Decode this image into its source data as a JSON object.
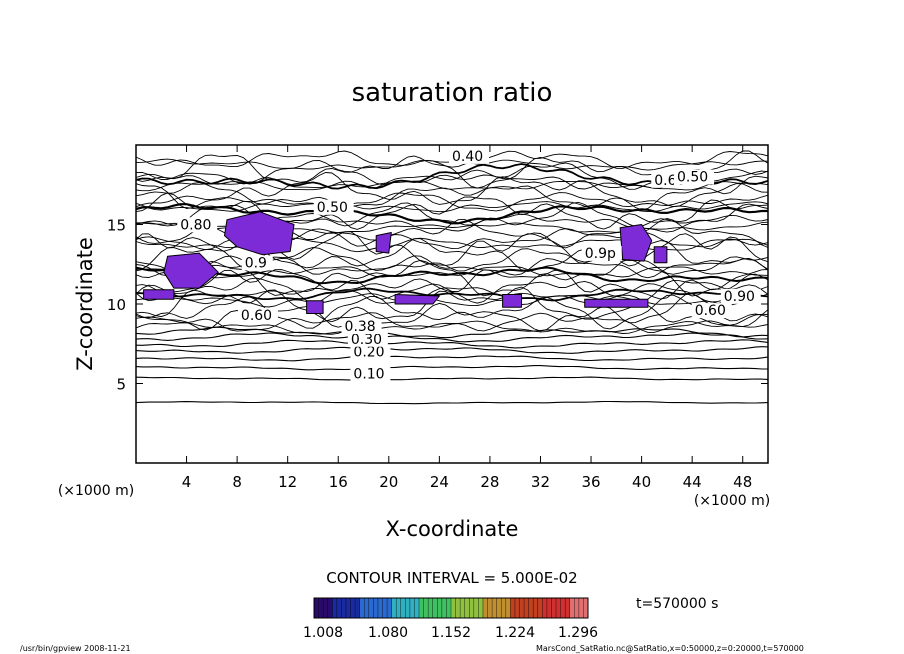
{
  "chart_data": {
    "type": "contour",
    "title": "saturation ratio",
    "xlabel": "X-coordinate",
    "ylabel": "Z-coordinate",
    "x_unit_left": "(×1000 m)",
    "x_unit_right": "(×1000 m)",
    "xlim": [
      0,
      50
    ],
    "ylim": [
      0,
      20
    ],
    "xticks": [
      "4",
      "8",
      "12",
      "16",
      "20",
      "24",
      "28",
      "32",
      "36",
      "40",
      "44",
      "48"
    ],
    "yticks": [
      "5",
      "10",
      "15"
    ],
    "contour_interval_text": "CONTOUR INTERVAL = 5.000E-02",
    "contour_labels": [
      {
        "text": "0.10",
        "x": 17.2,
        "z": 5.3
      },
      {
        "text": "0.20",
        "x": 17.2,
        "z": 6.7
      },
      {
        "text": "0.30",
        "x": 17.0,
        "z": 7.5
      },
      {
        "text": "0.38",
        "x": 16.5,
        "z": 8.3
      },
      {
        "text": "0.60",
        "x": 8.3,
        "z": 9.0
      },
      {
        "text": "0.50",
        "x": 14.3,
        "z": 15.8
      },
      {
        "text": "0.40",
        "x": 25.0,
        "z": 19.0
      },
      {
        "text": "0.80",
        "x": 3.5,
        "z": 14.7
      },
      {
        "text": "0.9",
        "x": 8.6,
        "z": 12.3
      },
      {
        "text": "0.60",
        "x": 41.0,
        "z": 17.5
      },
      {
        "text": "0.50",
        "x": 42.8,
        "z": 17.7
      },
      {
        "text": "0.90",
        "x": 46.5,
        "z": 10.2
      },
      {
        "text": "0.60",
        "x": 44.2,
        "z": 9.3
      },
      {
        "text": "0.9p",
        "x": 35.5,
        "z": 12.9
      }
    ],
    "colorbar": {
      "ticks": [
        "1.008",
        "1.080",
        "1.152",
        "1.224",
        "1.296"
      ],
      "colors": [
        "#2a0a6a",
        "#1a2aa0",
        "#2a6ad0",
        "#30b0c0",
        "#40c060",
        "#90c040",
        "#c09030",
        "#c04020",
        "#d03030",
        "#e07070"
      ]
    },
    "supersaturated_color": "#7d2bd6",
    "time_label": "t=570000 s",
    "footer_left": "/usr/bin/gpview   2008-11-21",
    "footer_right": "MarsCond_SatRatio.nc@SatRatio,x=0:50000,z=0:20000,t=570000"
  }
}
